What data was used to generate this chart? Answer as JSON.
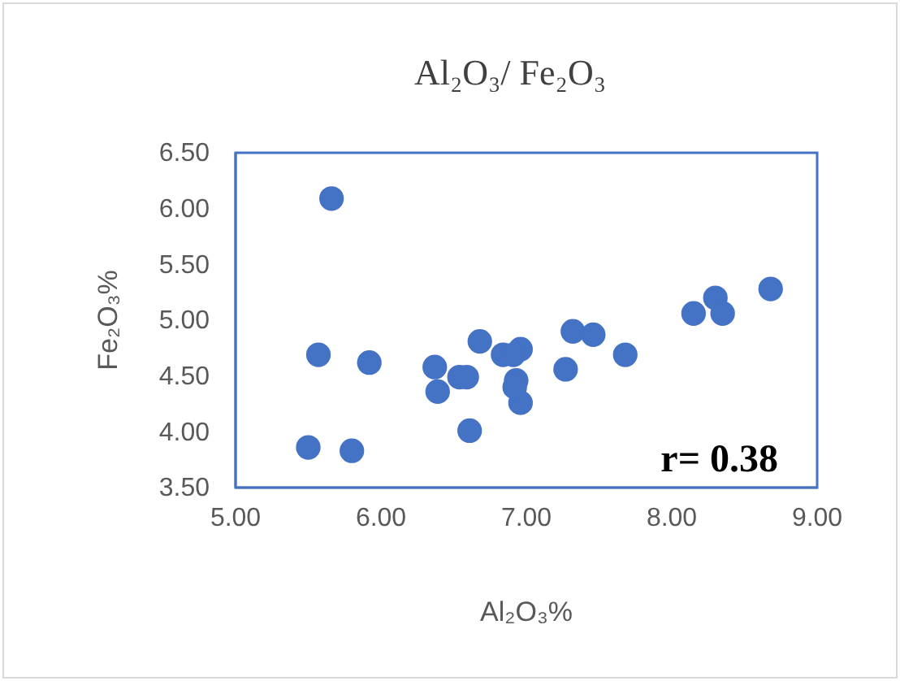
{
  "chart_data": {
    "type": "scatter",
    "title": "Al₂O₃/ Fe₂O₃",
    "xlabel": "Al₂O₃%",
    "ylabel": "Fe₂O₃%",
    "annotations": [
      "r= 0.38"
    ],
    "marker": "circle",
    "xlim": [
      5,
      9
    ],
    "xticks": [
      {
        "value": 5,
        "label": "5.00"
      },
      {
        "value": 6,
        "label": "6.00"
      },
      {
        "value": 7,
        "label": "7.00"
      },
      {
        "value": 8,
        "label": "8.00"
      },
      {
        "value": 9,
        "label": "9.00"
      }
    ],
    "ylim": [
      3.5,
      6.5
    ],
    "yticks": [
      {
        "value": 3.5,
        "label": "3.50"
      },
      {
        "value": 4,
        "label": "4.00"
      },
      {
        "value": 4.5,
        "label": "4.50"
      },
      {
        "value": 5,
        "label": "5.00"
      },
      {
        "value": 5.5,
        "label": "5.50"
      },
      {
        "value": 6,
        "label": "6.00"
      },
      {
        "value": 6.5,
        "label": "6.50"
      }
    ],
    "series": [
      {
        "color": "#4472c4",
        "x": [
          5.66,
          5.57,
          5.92,
          5.5,
          5.8,
          6.37,
          6.39,
          6.54,
          6.59,
          6.68,
          6.61,
          6.84,
          6.96,
          6.91,
          6.93,
          6.96,
          6.92,
          7.27,
          7.32,
          7.46,
          7.68,
          8.15,
          8.3,
          8.35,
          8.68
        ],
        "values": [
          6.09,
          4.69,
          4.62,
          3.86,
          3.83,
          4.58,
          4.36,
          4.49,
          4.49,
          4.81,
          4.01,
          4.69,
          4.74,
          4.69,
          4.46,
          4.26,
          4.4,
          4.56,
          4.9,
          4.87,
          4.69,
          5.06,
          5.2,
          5.06,
          5.28
        ]
      }
    ]
  }
}
